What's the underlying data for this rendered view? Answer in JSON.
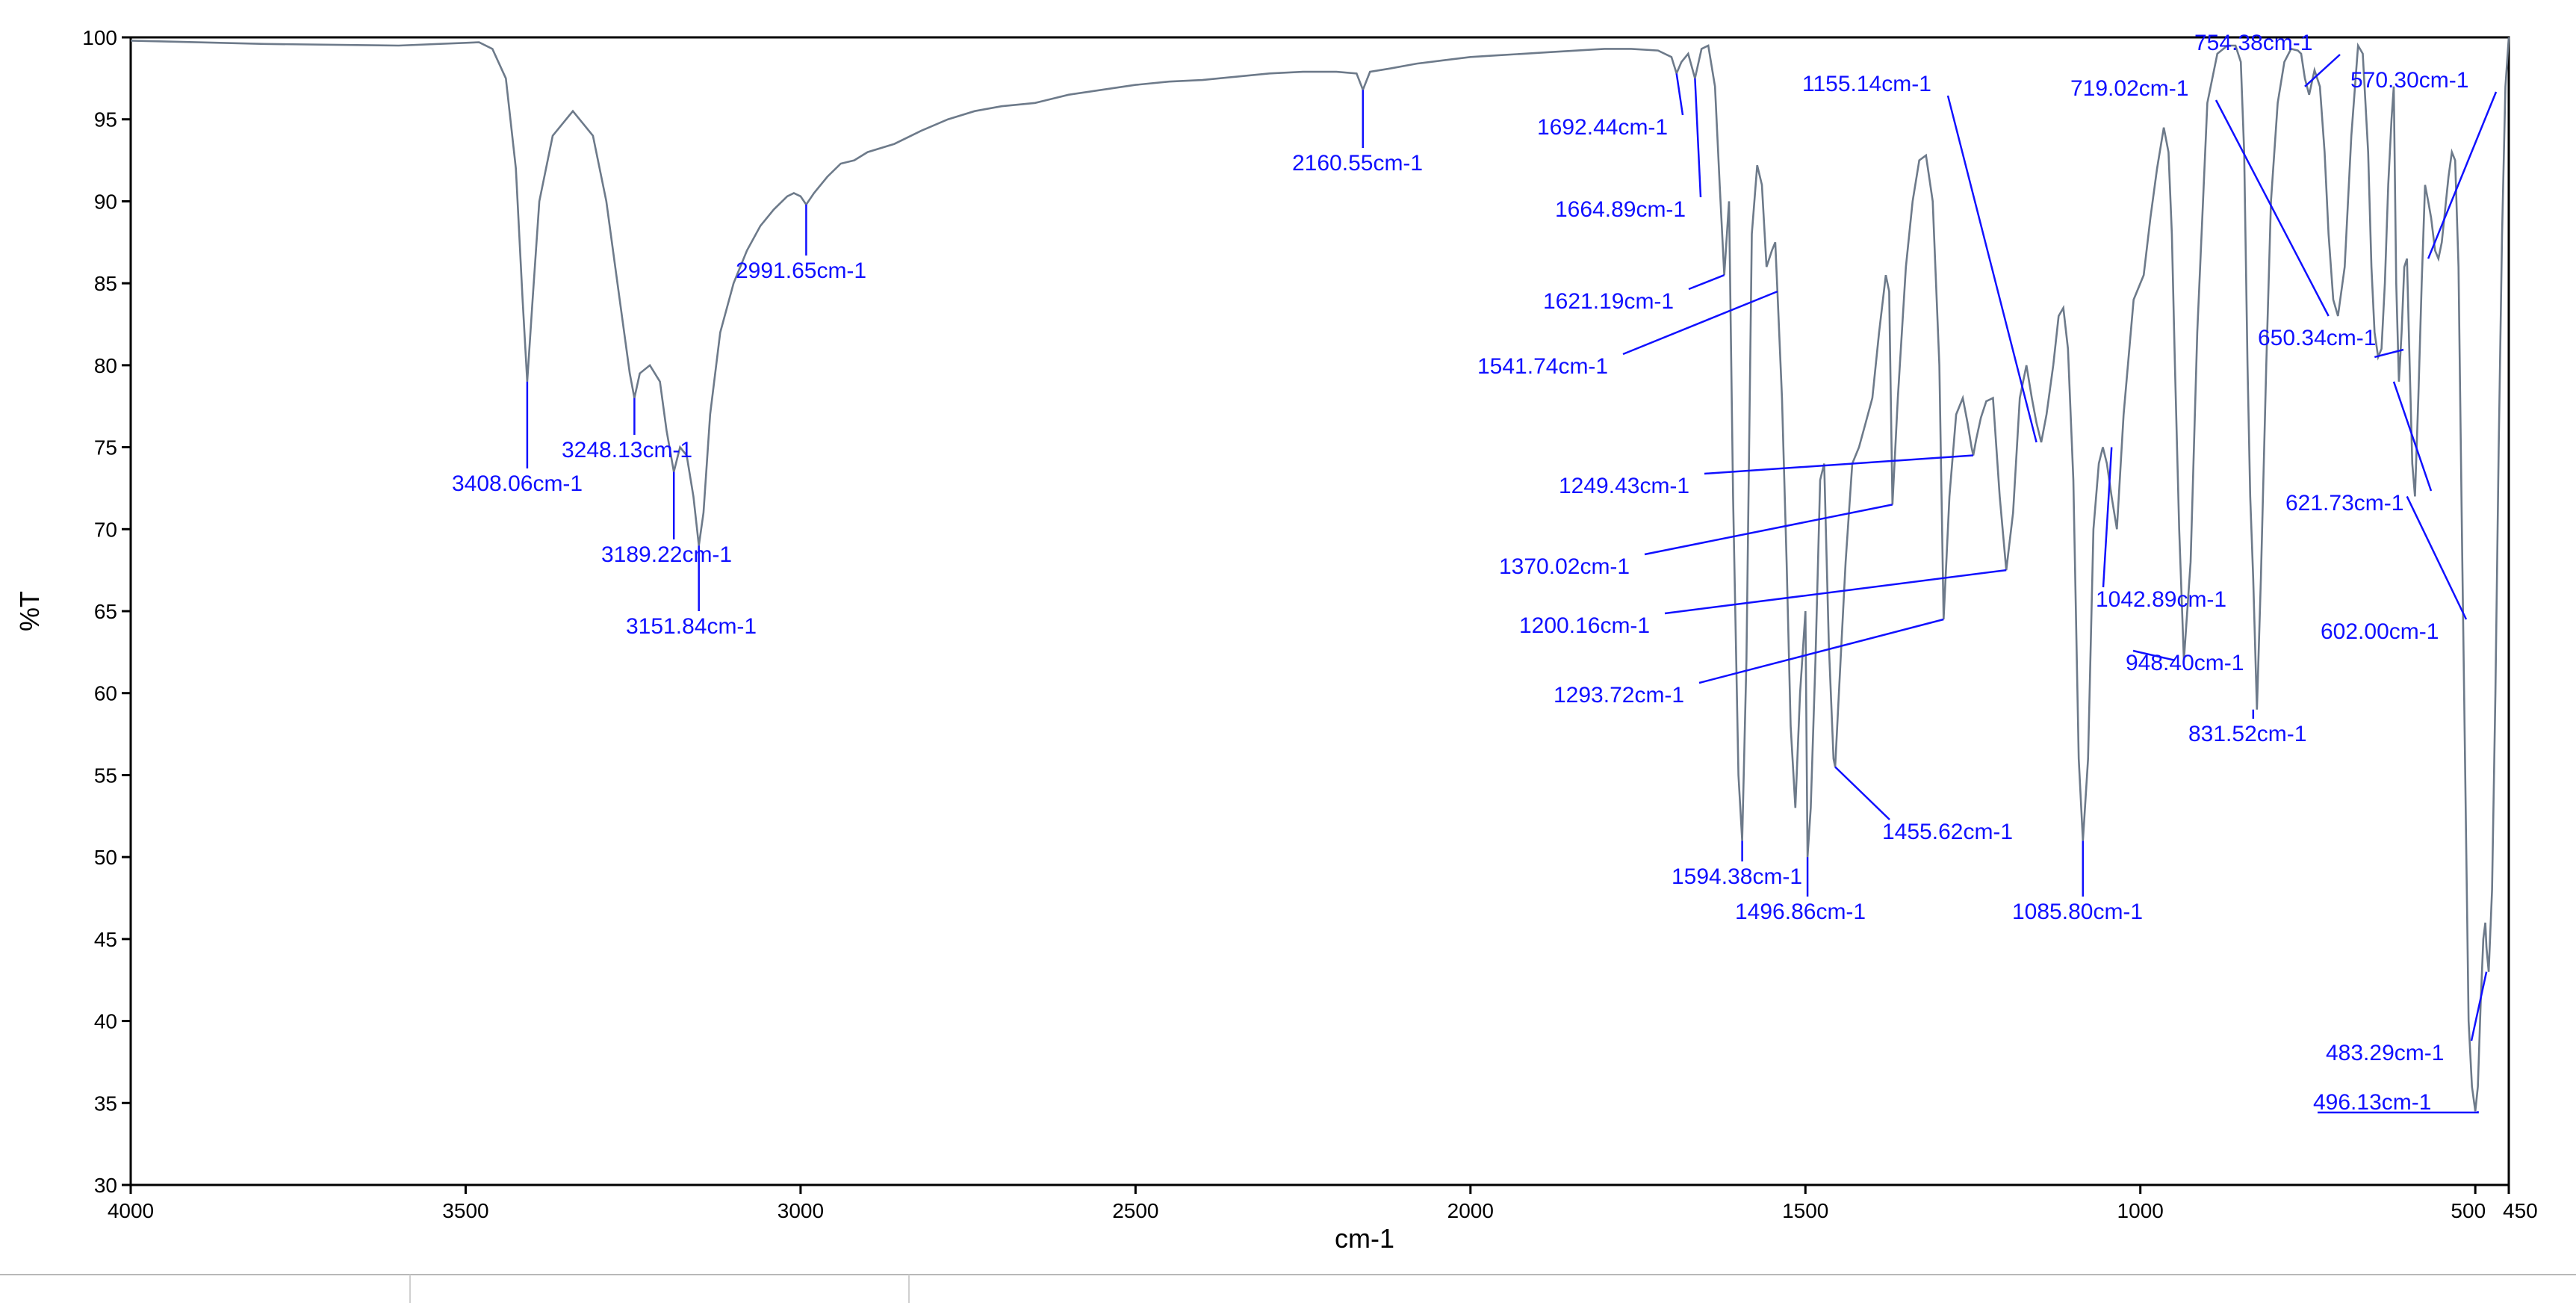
{
  "chart_data": {
    "type": "line",
    "title": "",
    "xlabel": "cm-1",
    "ylabel": "%T",
    "xlim": [
      4000,
      450
    ],
    "ylim": [
      30,
      100
    ],
    "x_ticks": [
      4000,
      3500,
      3000,
      2500,
      2000,
      1500,
      1000,
      500,
      450
    ],
    "y_ticks": [
      30,
      35,
      40,
      45,
      50,
      55,
      60,
      65,
      70,
      75,
      80,
      85,
      90,
      95,
      100
    ],
    "grid": false,
    "legend": "none",
    "colors": {
      "trace": "#6d7a8a",
      "annotation": "#1010ff",
      "axis": "#000000"
    },
    "series": [
      {
        "x": [
          4000,
          3800,
          3600,
          3480,
          3460,
          3440,
          3425,
          3415,
          3408.06,
          3400,
          3390,
          3370,
          3340,
          3310,
          3290,
          3270,
          3255,
          3248.13,
          3240,
          3225,
          3210,
          3200,
          3189.22,
          3180,
          3170,
          3160,
          3151.84,
          3145,
          3135,
          3120,
          3100,
          3080,
          3060,
          3040,
          3020,
          3010,
          3000,
          2991.65,
          2980,
          2960,
          2940,
          2920,
          2900,
          2860,
          2820,
          2780,
          2740,
          2700,
          2650,
          2600,
          2550,
          2500,
          2450,
          2400,
          2350,
          2300,
          2250,
          2200,
          2170,
          2160.55,
          2150,
          2120,
          2080,
          2040,
          2000,
          1960,
          1920,
          1880,
          1840,
          1800,
          1760,
          1720,
          1700,
          1692.44,
          1685,
          1675,
          1664.89,
          1655,
          1645,
          1635,
          1628,
          1621.19,
          1614,
          1608,
          1600,
          1594.38,
          1588,
          1580,
          1572,
          1565,
          1558,
          1550,
          1545,
          1541.74,
          1535,
          1528,
          1522,
          1515,
          1508,
          1500,
          1496.86,
          1492,
          1485,
          1478,
          1472,
          1465,
          1458,
          1455.62,
          1450,
          1440,
          1430,
          1420,
          1410,
          1400,
          1390,
          1380,
          1375,
          1370.02,
          1362,
          1350,
          1340,
          1330,
          1320,
          1310,
          1300,
          1293.72,
          1285,
          1275,
          1265,
          1258,
          1252,
          1249.43,
          1245,
          1238,
          1230,
          1220,
          1210,
          1200.16,
          1190,
          1180,
          1170,
          1162,
          1155.14,
          1148,
          1140,
          1130,
          1122,
          1115,
          1108,
          1100,
          1092,
          1085.8,
          1078,
          1070,
          1062,
          1056,
          1050,
          1042.89,
          1035,
          1025,
          1010,
          995,
          985,
          975,
          965,
          958,
          953,
          948.4,
          942,
          935,
          925,
          915,
          900,
          885,
          870,
          858,
          850,
          845,
          840,
          836,
          831.52,
          826,
          820,
          812,
          805,
          795,
          785,
          775,
          765,
          760,
          754.38,
          748,
          740,
          732,
          725,
          719.02,
          712,
          705,
          695,
          685,
          675,
          668,
          660,
          655,
          650.34,
          645,
          640,
          635,
          630,
          625,
          621.73,
          618,
          614,
          610,
          606,
          602,
          598,
          594,
          590,
          585,
          580,
          575,
          570.3,
          566,
          560,
          555,
          550,
          545,
          540,
          535,
          530,
          525,
          520,
          515,
          510,
          505,
          500,
          496.13,
          492,
          488,
          485,
          483.29,
          480,
          475,
          470,
          465,
          460,
          455,
          450
        ],
        "y": [
          99.8,
          99.6,
          99.5,
          99.7,
          99.3,
          97.5,
          92,
          84,
          79,
          84,
          90,
          94,
          95.5,
          94,
          90,
          84,
          79.5,
          78,
          79.5,
          80,
          79,
          76,
          73.5,
          75,
          74.5,
          72,
          69,
          71,
          77,
          82,
          85,
          87,
          88.5,
          89.5,
          90.3,
          90.5,
          90.3,
          89.8,
          90.5,
          91.5,
          92.3,
          92.5,
          93,
          93.5,
          94.3,
          95,
          95.5,
          95.8,
          96,
          96.5,
          96.8,
          97.1,
          97.3,
          97.4,
          97.6,
          97.8,
          97.9,
          97.9,
          97.8,
          96.8,
          97.9,
          98.1,
          98.4,
          98.6,
          98.8,
          98.9,
          99,
          99.1,
          99.2,
          99.3,
          99.3,
          99.2,
          98.8,
          97.8,
          98.5,
          99,
          97.5,
          99.3,
          99.5,
          97,
          91,
          85.5,
          90,
          72,
          55,
          51,
          62,
          88,
          92.2,
          91,
          86,
          87,
          87.5,
          84.5,
          78,
          68,
          58,
          53,
          60,
          65,
          50,
          53,
          62,
          73,
          74,
          63,
          56,
          55.5,
          60,
          68,
          74,
          75,
          76.5,
          78,
          82,
          85.5,
          84.5,
          71.5,
          78,
          86,
          90,
          92.5,
          92.8,
          90,
          80,
          64.5,
          72,
          77,
          78,
          76.5,
          75,
          74.5,
          75.5,
          76.8,
          77.8,
          78,
          72,
          67.5,
          71,
          78,
          80,
          78,
          76.5,
          75.3,
          77,
          80,
          83,
          83.5,
          81,
          73,
          56,
          51,
          56,
          70,
          74,
          75,
          74,
          72,
          70,
          77,
          84,
          85.5,
          89,
          92,
          94.5,
          93,
          88,
          80,
          70,
          62,
          68,
          82,
          96,
          99,
          99.5,
          99.5,
          98.5,
          93,
          80,
          72,
          67,
          59,
          67,
          80,
          90,
          96,
          98.5,
          99.3,
          99.2,
          99,
          97.5,
          96.5,
          98,
          97,
          93,
          88,
          84,
          83,
          86,
          94,
          99.5,
          99,
          93,
          86,
          82,
          80.5,
          81,
          85,
          91,
          95,
          97,
          85,
          79,
          82,
          86,
          86.5,
          80,
          74,
          72,
          78,
          85,
          91,
          90,
          89,
          87,
          86.5,
          87.5,
          89.5,
          91.5,
          93,
          92.5,
          86,
          70,
          55,
          40,
          36,
          34.5,
          36,
          41,
          45,
          46,
          44.5,
          43,
          48,
          60,
          75,
          88,
          97,
          100
        ]
      }
    ],
    "annotations": [
      {
        "label": "3408.06cm-1",
        "x": 3408.06,
        "y": 79
      },
      {
        "label": "3248.13cm-1",
        "x": 3248.13,
        "y": 78
      },
      {
        "label": "3189.22cm-1",
        "x": 3189.22,
        "y": 73.5
      },
      {
        "label": "3151.84cm-1",
        "x": 3151.84,
        "y": 69
      },
      {
        "label": "2991.65cm-1",
        "x": 2991.65,
        "y": 89.8
      },
      {
        "label": "2160.55cm-1",
        "x": 2160.55,
        "y": 96.8
      },
      {
        "label": "1692.44cm-1",
        "x": 1692.44,
        "y": 97.8
      },
      {
        "label": "1664.89cm-1",
        "x": 1664.89,
        "y": 97.5
      },
      {
        "label": "1621.19cm-1",
        "x": 1621.19,
        "y": 85.5
      },
      {
        "label": "1594.38cm-1",
        "x": 1594.38,
        "y": 51
      },
      {
        "label": "1541.74cm-1",
        "x": 1541.74,
        "y": 84.5
      },
      {
        "label": "1496.86cm-1",
        "x": 1496.86,
        "y": 50
      },
      {
        "label": "1455.62cm-1",
        "x": 1455.62,
        "y": 55.5
      },
      {
        "label": "1370.02cm-1",
        "x": 1370.02,
        "y": 71.5
      },
      {
        "label": "1293.72cm-1",
        "x": 1293.72,
        "y": 64.5
      },
      {
        "label": "1249.43cm-1",
        "x": 1249.43,
        "y": 74.5
      },
      {
        "label": "1200.16cm-1",
        "x": 1200.16,
        "y": 67.5
      },
      {
        "label": "1155.14cm-1",
        "x": 1155.14,
        "y": 75.3
      },
      {
        "label": "1085.80cm-1",
        "x": 1085.8,
        "y": 51
      },
      {
        "label": "1042.89cm-1",
        "x": 1042.89,
        "y": 75
      },
      {
        "label": "948.40cm-1",
        "x": 948.4,
        "y": 62
      },
      {
        "label": "831.52cm-1",
        "x": 831.52,
        "y": 59
      },
      {
        "label": "754.38cm-1",
        "x": 754.38,
        "y": 97
      },
      {
        "label": "719.02cm-1",
        "x": 719.02,
        "y": 83
      },
      {
        "label": "650.34cm-1",
        "x": 650.34,
        "y": 80.5
      },
      {
        "label": "621.73cm-1",
        "x": 621.73,
        "y": 79
      },
      {
        "label": "602.00cm-1",
        "x": 602,
        "y": 72
      },
      {
        "label": "570.30cm-1",
        "x": 570.3,
        "y": 86.5
      },
      {
        "label": "496.13cm-1",
        "x": 496.13,
        "y": 34.5
      },
      {
        "label": "483.29cm-1",
        "x": 483.29,
        "y": 43
      }
    ]
  }
}
